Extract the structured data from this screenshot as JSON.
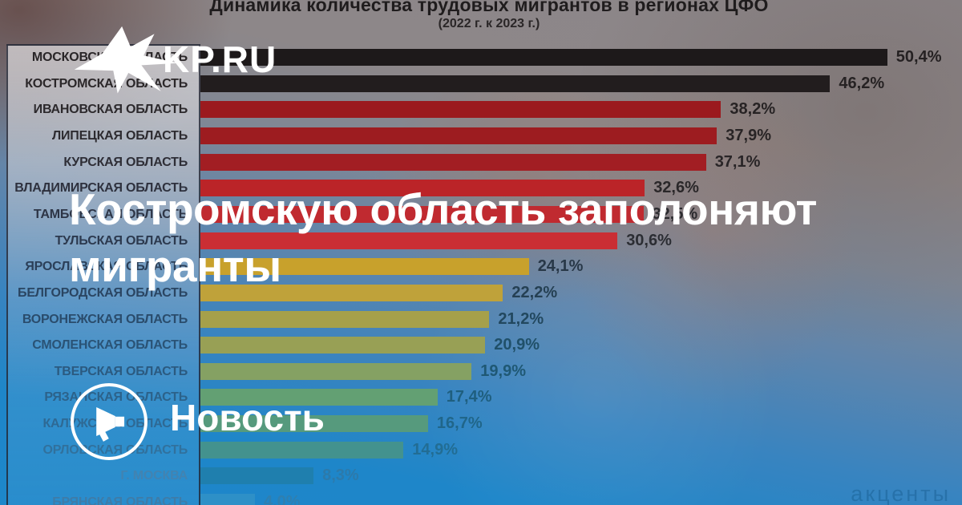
{
  "branding": {
    "logo_text": "KP.RU",
    "badge_label": "Новость",
    "watermark": "акценты"
  },
  "headline": {
    "line1": "Костромскую область заполоняют",
    "line2": "мигранты"
  },
  "chart_data": {
    "type": "bar",
    "orientation": "horizontal",
    "title": "Динамика количества трудовых мигрантов в регионах ЦФО",
    "subtitle": "(2022 г. к 2023 г.)",
    "unit": "%",
    "xlim": [
      0,
      55
    ],
    "grid": false,
    "legend": false,
    "rows": [
      {
        "label": "МОСКОВСКАЯ ОБЛАСТЬ",
        "value": 50.4,
        "value_label": "50,4%",
        "bar_color": "#1d191a",
        "label_color": "#2a2628",
        "value_color": "#252122"
      },
      {
        "label": "КОСТРОМСКАЯ ОБЛАСТЬ",
        "value": 46.2,
        "value_label": "46,2%",
        "bar_color": "#221d1e",
        "label_color": "#2b2729",
        "value_color": "#262223"
      },
      {
        "label": "ИВАНОВСКАЯ ОБЛАСТЬ",
        "value": 38.2,
        "value_label": "38,2%",
        "bar_color": "#9b1a1e",
        "label_color": "#2c292c",
        "value_color": "#272324"
      },
      {
        "label": "ЛИПЕЦКАЯ ОБЛАСТЬ",
        "value": 37.9,
        "value_label": "37,9%",
        "bar_color": "#9d1c20",
        "label_color": "#2d2b30",
        "value_color": "#282425"
      },
      {
        "label": "КУРСКАЯ ОБЛАСТЬ",
        "value": 37.1,
        "value_label": "37,1%",
        "bar_color": "#a21e23",
        "label_color": "#2e2e36",
        "value_color": "#292527"
      },
      {
        "label": "ВЛАДИМИРСКАЯ ОБЛАСТЬ",
        "value": 32.6,
        "value_label": "32,6%",
        "bar_color": "#bb2428",
        "label_color": "#2e313e",
        "value_color": "#2a2729"
      },
      {
        "label": "ТАМБОВСКАЯ ОБЛАСТЬ",
        "value": 32.5,
        "value_label": "32,5%",
        "bar_color": "#c02a30",
        "label_color": "#2d3546",
        "value_color": "#2b2a2e"
      },
      {
        "label": "ТУЛЬСКАЯ ОБЛАСТЬ",
        "value": 30.6,
        "value_label": "30,6%",
        "bar_color": "#ca2e34",
        "label_color": "#2c394e",
        "value_color": "#2b2d33"
      },
      {
        "label": "ЯРОСЛАВСКАЯ ОБЛАСТЬ",
        "value": 24.1,
        "value_label": "24,1%",
        "bar_color": "#c8a12c",
        "label_color": "#2b3f58",
        "value_color": "#283848"
      },
      {
        "label": "БЕЛГОРОДСКАЯ ОБЛАСТЬ",
        "value": 22.2,
        "value_label": "22,2%",
        "bar_color": "#bfa23a",
        "label_color": "#2a4562",
        "value_color": "#254053"
      },
      {
        "label": "ВОРОНЕЖСКАЯ ОБЛАСТЬ",
        "value": 21.2,
        "value_label": "21,2%",
        "bar_color": "#a6a04a",
        "label_color": "#2a4c6c",
        "value_color": "#22485f"
      },
      {
        "label": "СМОЛЕНСКАЯ ОБЛАСТЬ",
        "value": 20.9,
        "value_label": "20,9%",
        "bar_color": "#98a055",
        "label_color": "#2a5376",
        "value_color": "#205069"
      },
      {
        "label": "ТВЕРСКАЯ ОБЛАСТЬ",
        "value": 19.9,
        "value_label": "19,9%",
        "bar_color": "#85a163",
        "label_color": "#2b5a80",
        "value_color": "#1f5874"
      },
      {
        "label": "РЯЗАНСКАЯ ОБЛАСТЬ",
        "value": 17.4,
        "value_label": "17,4%",
        "bar_color": "#63a073",
        "label_color": "#2c628a",
        "value_color": "#1f5f7f"
      },
      {
        "label": "КАЛУЖСКАЯ ОБЛАСТЬ",
        "value": 16.7,
        "value_label": "16,7%",
        "bar_color": "#569a7d",
        "label_color": "#2e6994",
        "value_color": "#20668a"
      },
      {
        "label": "ОРЛОВСКАЯ ОБЛАСТЬ",
        "value": 14.9,
        "value_label": "14,9%",
        "bar_color": "#43928e",
        "label_color": "#31719d",
        "value_color": "#226d94"
      },
      {
        "label": "Г. МОСКВА",
        "value": 8.3,
        "value_label": "8,3%",
        "bar_color": "#1f7fae",
        "label_color": "#4283b1",
        "value_color": "#2c7aab"
      },
      {
        "label": "БРЯНСКАЯ ОБЛАСТЬ",
        "value": 4.0,
        "value_label": "4,0%",
        "bar_color": "#2e90c7",
        "label_color": "#3e7ca8",
        "value_color": "#2f7fb0"
      }
    ]
  },
  "colors": {
    "background_bottom": "#1d87ca",
    "background_top": "#8c8689",
    "headline_text": "#ffffff",
    "title_text": "#1f1c1d"
  }
}
